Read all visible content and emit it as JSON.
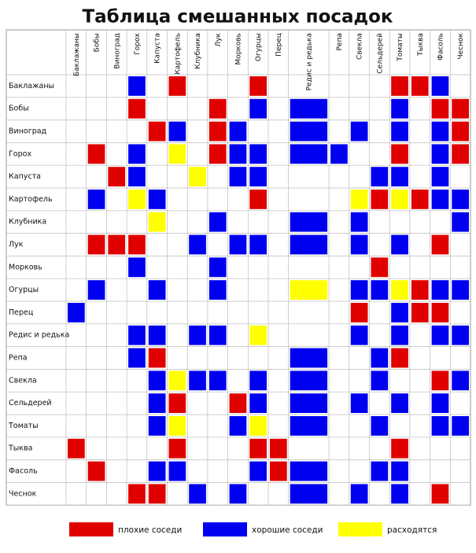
{
  "title": "Таблица смешанных посадок",
  "columns": [
    "Баклажаны",
    "Бобы",
    "Виноград",
    "Горох",
    "Капуста",
    "Картофель",
    "Клубника",
    "Лук",
    "Морковь",
    "Огурцы",
    "Перец",
    "Редис и редька",
    "Репа",
    "Свекла",
    "Сельдерей",
    "Томаты",
    "Тыква",
    "Фасоль",
    "Чеснок"
  ],
  "legend": [
    {
      "key": "r",
      "color": "#e00000",
      "label": "плохие соседи"
    },
    {
      "key": "g",
      "color": "#0000f0",
      "label": "хорошие соседи"
    },
    {
      "key": "y",
      "color": "#ffff00",
      "label": "расходятся"
    }
  ],
  "rows": [
    {
      "label": "Баклажаны",
      "cells": [
        null,
        null,
        null,
        "g",
        null,
        "r",
        null,
        null,
        null,
        "r",
        null,
        null,
        null,
        null,
        null,
        "r",
        "r",
        "g",
        null
      ]
    },
    {
      "label": "Бобы",
      "cells": [
        null,
        null,
        null,
        "r",
        null,
        null,
        null,
        "r",
        null,
        "g",
        null,
        "g",
        null,
        null,
        null,
        "g",
        null,
        "r",
        "r"
      ]
    },
    {
      "label": "Виноград",
      "cells": [
        null,
        null,
        null,
        null,
        "r",
        "g",
        null,
        "r",
        "g",
        null,
        null,
        "g",
        null,
        "g",
        null,
        "g",
        null,
        "g",
        "r"
      ]
    },
    {
      "label": "Горох",
      "cells": [
        null,
        "r",
        null,
        "g",
        null,
        "y",
        null,
        "r",
        "g",
        "g",
        null,
        "g",
        "g",
        null,
        null,
        "r",
        null,
        "g",
        "r"
      ]
    },
    {
      "label": "Капуста",
      "cells": [
        null,
        null,
        "r",
        "g",
        null,
        null,
        "y",
        null,
        "g",
        "g",
        null,
        null,
        null,
        null,
        "g",
        "g",
        null,
        "g",
        null
      ]
    },
    {
      "label": "Картофель",
      "cells": [
        null,
        "g",
        null,
        "y",
        "g",
        null,
        null,
        null,
        null,
        "r",
        null,
        null,
        null,
        "y",
        "r",
        "y",
        "r",
        "g",
        "g"
      ]
    },
    {
      "label": "Клубника",
      "cells": [
        null,
        null,
        null,
        null,
        "y",
        null,
        null,
        "g",
        null,
        null,
        null,
        "g",
        null,
        "g",
        null,
        null,
        null,
        null,
        "g"
      ]
    },
    {
      "label": "Лук",
      "cells": [
        null,
        "r",
        "r",
        "r",
        null,
        null,
        "g",
        null,
        "g",
        "g",
        null,
        "g",
        null,
        "g",
        null,
        "g",
        null,
        "r",
        null
      ]
    },
    {
      "label": "Морковь",
      "cells": [
        null,
        null,
        null,
        "g",
        null,
        null,
        null,
        "g",
        null,
        null,
        null,
        null,
        null,
        null,
        "r",
        null,
        null,
        null,
        null
      ]
    },
    {
      "label": "Огурцы",
      "cells": [
        null,
        "g",
        null,
        null,
        "g",
        null,
        null,
        "g",
        null,
        null,
        null,
        "y",
        null,
        "g",
        "g",
        "y",
        "r",
        "g",
        "g"
      ]
    },
    {
      "label": "Перец",
      "cells": [
        "g",
        null,
        null,
        null,
        null,
        null,
        null,
        null,
        null,
        null,
        null,
        null,
        null,
        "r",
        null,
        "g",
        "r",
        "r",
        null
      ]
    },
    {
      "label": "Редис и редька",
      "cells": [
        null,
        null,
        null,
        "g",
        "g",
        null,
        "g",
        "g",
        null,
        "y",
        null,
        null,
        null,
        "g",
        null,
        "g",
        null,
        "g",
        "g"
      ]
    },
    {
      "label": "Репа",
      "cells": [
        null,
        null,
        null,
        "g",
        "r",
        null,
        null,
        null,
        null,
        null,
        null,
        "g",
        null,
        null,
        "g",
        "r",
        null,
        null,
        null
      ]
    },
    {
      "label": "Свекла",
      "cells": [
        null,
        null,
        null,
        null,
        "g",
        "y",
        "g",
        "g",
        null,
        "g",
        null,
        "g",
        null,
        null,
        "g",
        null,
        null,
        "r",
        "g"
      ]
    },
    {
      "label": "Сельдерей",
      "cells": [
        null,
        null,
        null,
        null,
        "g",
        "r",
        null,
        null,
        "r",
        "g",
        null,
        "g",
        null,
        "g",
        null,
        "g",
        null,
        "g",
        null
      ]
    },
    {
      "label": "Томаты",
      "cells": [
        null,
        null,
        null,
        null,
        "g",
        "y",
        null,
        null,
        "g",
        "y",
        null,
        "g",
        null,
        null,
        "g",
        null,
        null,
        "g",
        "g"
      ]
    },
    {
      "label": "Тыква",
      "cells": [
        "r",
        null,
        null,
        null,
        null,
        "r",
        null,
        null,
        null,
        "r",
        "r",
        null,
        null,
        null,
        null,
        "r",
        null,
        null,
        null
      ]
    },
    {
      "label": "Фасоль",
      "cells": [
        null,
        "r",
        null,
        null,
        "g",
        "g",
        null,
        null,
        null,
        "g",
        "r",
        "g",
        null,
        null,
        "g",
        "g",
        null,
        null,
        null
      ]
    },
    {
      "label": "Чеснок",
      "cells": [
        null,
        null,
        null,
        "r",
        "r",
        null,
        "g",
        null,
        "g",
        null,
        null,
        "g",
        null,
        "g",
        null,
        "g",
        null,
        "r",
        null
      ]
    }
  ]
}
